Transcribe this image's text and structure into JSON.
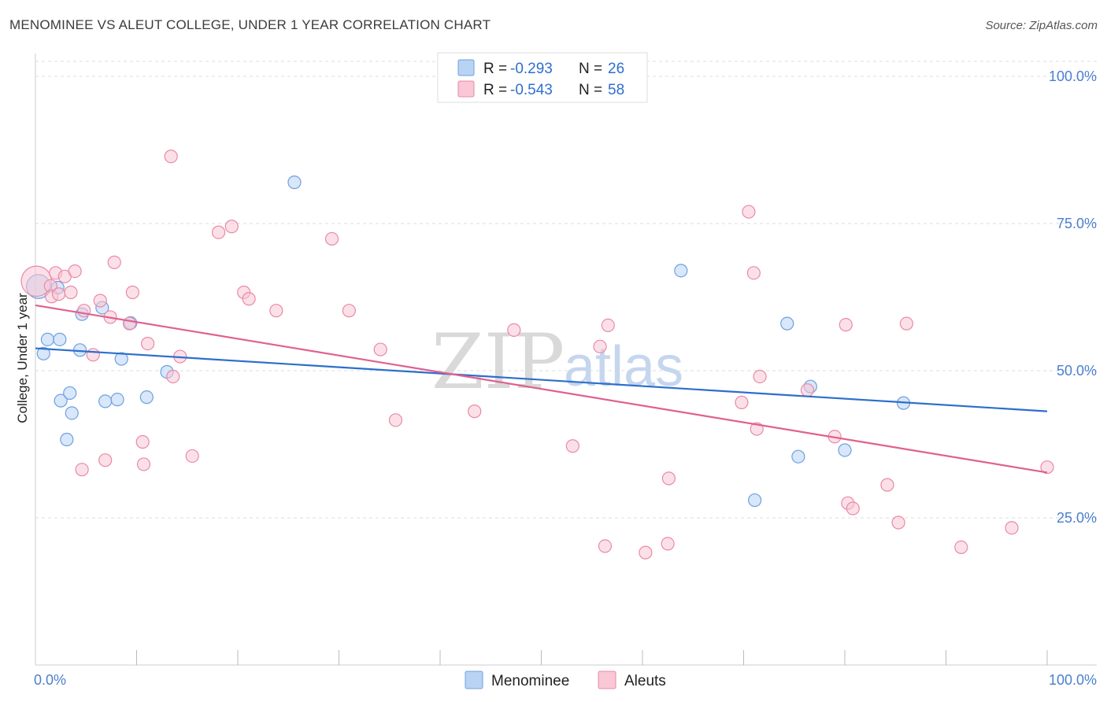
{
  "header": {
    "title": "MENOMINEE VS ALEUT COLLEGE, UNDER 1 YEAR CORRELATION CHART",
    "source": "Source: ZipAtlas.com"
  },
  "watermark": {
    "zip": "ZIP",
    "atlas": "atlas"
  },
  "chart_data": {
    "type": "scatter",
    "title": "MENOMINEE VS ALEUT COLLEGE, UNDER 1 YEAR CORRELATION CHART",
    "xlabel": "",
    "ylabel": "College, Under 1 year",
    "xlim": [
      0,
      100
    ],
    "ylim": [
      0,
      100
    ],
    "x_tick_labels": [
      "0.0%",
      "100.0%"
    ],
    "y_ticks": [
      25,
      50,
      75,
      100
    ],
    "y_tick_labels": [
      "25.0%",
      "50.0%",
      "75.0%",
      "100.0%"
    ],
    "grid": "horizontal dashed",
    "legend": {
      "position": "top-center",
      "entries": [
        {
          "r_label": "R =",
          "r_value": "-0.293",
          "n_label": "N =",
          "n_value": "26"
        },
        {
          "r_label": "R =",
          "r_value": "-0.543",
          "n_label": "N =",
          "n_value": "58"
        }
      ]
    },
    "bottom_legend": [
      "Menominee",
      "Aleuts"
    ],
    "colors": {
      "menominee_fill": "#b8d3f4",
      "menominee_stroke": "#6f9fe0",
      "menominee_line": "#2d6fcc",
      "aleuts_fill": "#f9c7d6",
      "aleuts_stroke": "#e88aa8",
      "aleuts_line": "#e0608f",
      "axis_text": "#4a7fcf",
      "grid": "#dddddd"
    },
    "series": [
      {
        "name": "Menominee",
        "trend": {
          "x": [
            0,
            100
          ],
          "y": [
            53.8,
            43.1
          ]
        },
        "points": [
          [
            0.3,
            64.3,
            1.9
          ],
          [
            0.8,
            52.9,
            1
          ],
          [
            1.2,
            55.3,
            1
          ],
          [
            2.2,
            64.1,
            1
          ],
          [
            2.4,
            55.3,
            1
          ],
          [
            2.5,
            44.9,
            1
          ],
          [
            3.1,
            38.3,
            1
          ],
          [
            3.4,
            46.2,
            1
          ],
          [
            3.6,
            42.8,
            1
          ],
          [
            4.4,
            53.5,
            1
          ],
          [
            4.6,
            59.6,
            1
          ],
          [
            6.6,
            60.7,
            1
          ],
          [
            6.9,
            44.8,
            1
          ],
          [
            8.1,
            45.1,
            1
          ],
          [
            8.5,
            52.0,
            1
          ],
          [
            9.4,
            58.1,
            1
          ],
          [
            11.0,
            45.5,
            1
          ],
          [
            13.0,
            49.8,
            1
          ],
          [
            25.6,
            82.0,
            1
          ],
          [
            63.8,
            67.0,
            1
          ],
          [
            71.1,
            28.0,
            1
          ],
          [
            74.3,
            58.0,
            1
          ],
          [
            75.4,
            35.4,
            1
          ],
          [
            76.6,
            47.3,
            1
          ],
          [
            80.0,
            36.5,
            1
          ],
          [
            85.8,
            44.5,
            1
          ]
        ]
      },
      {
        "name": "Aleuts",
        "trend": {
          "x": [
            0,
            100
          ],
          "y": [
            61.1,
            32.7
          ]
        },
        "points": [
          [
            0.1,
            65.2,
            2.4
          ],
          [
            1.5,
            64.4,
            1
          ],
          [
            1.6,
            62.6,
            1
          ],
          [
            2.0,
            66.6,
            1
          ],
          [
            2.3,
            63.0,
            1
          ],
          [
            2.9,
            66.0,
            1
          ],
          [
            3.5,
            63.3,
            1
          ],
          [
            3.9,
            66.9,
            1
          ],
          [
            4.6,
            33.2,
            1
          ],
          [
            4.8,
            60.2,
            1
          ],
          [
            5.7,
            52.7,
            1
          ],
          [
            6.4,
            61.9,
            1
          ],
          [
            6.9,
            34.8,
            1
          ],
          [
            7.4,
            59.1,
            1
          ],
          [
            7.8,
            68.4,
            1
          ],
          [
            9.3,
            58.0,
            1
          ],
          [
            9.6,
            63.3,
            1
          ],
          [
            10.6,
            37.9,
            1
          ],
          [
            10.7,
            34.1,
            1
          ],
          [
            11.1,
            54.6,
            1
          ],
          [
            13.4,
            86.4,
            1
          ],
          [
            13.6,
            49.0,
            1
          ],
          [
            14.3,
            52.4,
            1
          ],
          [
            15.5,
            35.5,
            1
          ],
          [
            18.1,
            73.5,
            1
          ],
          [
            19.4,
            74.5,
            1
          ],
          [
            20.6,
            63.3,
            1
          ],
          [
            21.1,
            62.2,
            1
          ],
          [
            23.8,
            60.2,
            1
          ],
          [
            29.3,
            72.4,
            1
          ],
          [
            31.0,
            60.2,
            1
          ],
          [
            34.1,
            53.6,
            1
          ],
          [
            35.6,
            41.6,
            1
          ],
          [
            43.4,
            43.1,
            1
          ],
          [
            47.3,
            56.9,
            1
          ],
          [
            53.1,
            37.2,
            1
          ],
          [
            55.8,
            54.1,
            1
          ],
          [
            56.3,
            20.2,
            1
          ],
          [
            56.6,
            57.7,
            1
          ],
          [
            60.3,
            19.1,
            1
          ],
          [
            62.5,
            20.6,
            1
          ],
          [
            62.6,
            31.7,
            1
          ],
          [
            69.8,
            44.6,
            1
          ],
          [
            70.5,
            77.0,
            1
          ],
          [
            71.0,
            66.6,
            1
          ],
          [
            71.3,
            40.1,
            1
          ],
          [
            71.6,
            49.0,
            1
          ],
          [
            76.3,
            46.7,
            1
          ],
          [
            79.0,
            38.8,
            1
          ],
          [
            80.1,
            57.8,
            1
          ],
          [
            80.3,
            27.5,
            1
          ],
          [
            80.8,
            26.6,
            1
          ],
          [
            84.2,
            30.6,
            1
          ],
          [
            85.3,
            24.2,
            1
          ],
          [
            86.1,
            58.0,
            1
          ],
          [
            91.5,
            20.0,
            1
          ],
          [
            96.5,
            23.3,
            1
          ],
          [
            100.0,
            33.6,
            1
          ]
        ]
      }
    ]
  }
}
